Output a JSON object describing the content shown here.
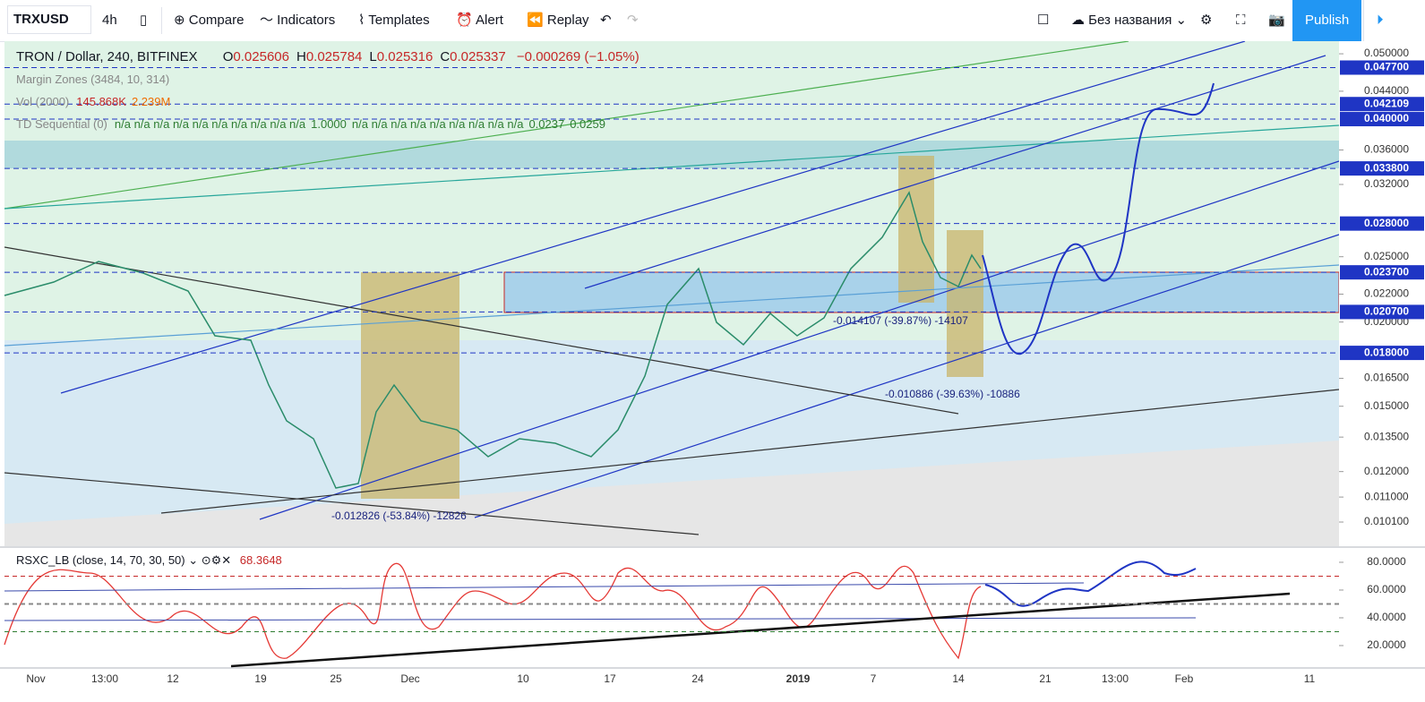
{
  "toolbar": {
    "symbol": "TRXUSD",
    "interval": "4h",
    "buttons": [
      "Compare",
      "Indicators",
      "Templates",
      "Alert",
      "Replay"
    ],
    "layout_name": "Без названия",
    "publish": "Publish"
  },
  "legend": {
    "title": "TRON / Dollar, 240, BITFINEX",
    "ohlc": [
      {
        "key": "O",
        "value": "0.025606"
      },
      {
        "key": "H",
        "value": "0.025784"
      },
      {
        "key": "L",
        "value": "0.025316"
      },
      {
        "key": "C",
        "value": "0.025337"
      }
    ],
    "change": "−0.000269 (−1.05%)",
    "indicators": [
      {
        "name": "Margin Zones (3484, 10, 314)",
        "values": []
      },
      {
        "name": "Vol (2000)",
        "values": [
          "145.868K",
          "2.239M"
        ]
      },
      {
        "name": "TD Sequential (0)",
        "values": [
          "n/a n/a n/a n/a n/a n/a n/a n/a n/a n/a",
          "1.0000",
          "n/a n/a n/a n/a n/a n/a n/a n/a n/a",
          "0.0237",
          "0.0259"
        ]
      }
    ]
  },
  "price_axis": {
    "scale": "log",
    "range": [
      0.0093,
      0.0522
    ],
    "ticks": [
      {
        "value": 0.05,
        "label": "0.050000"
      },
      {
        "value": 0.044,
        "label": "0.044000"
      },
      {
        "value": 0.036,
        "label": "0.036000"
      },
      {
        "value": 0.032,
        "label": "0.032000"
      },
      {
        "value": 0.025,
        "label": "0.025000"
      },
      {
        "value": 0.022,
        "label": "0.022000"
      },
      {
        "value": 0.02,
        "label": "0.020000"
      },
      {
        "value": 0.0165,
        "label": "0.016500"
      },
      {
        "value": 0.015,
        "label": "0.015000"
      },
      {
        "value": 0.0135,
        "label": "0.013500"
      },
      {
        "value": 0.012,
        "label": "0.012000"
      },
      {
        "value": 0.011,
        "label": "0.011000"
      },
      {
        "value": 0.0101,
        "label": "0.010100"
      }
    ],
    "levels": [
      {
        "value": 0.0477,
        "label": "0.047700"
      },
      {
        "value": 0.042109,
        "label": "0.042109"
      },
      {
        "value": 0.04,
        "label": "0.040000"
      },
      {
        "value": 0.0338,
        "label": "0.033800"
      },
      {
        "value": 0.028,
        "label": "0.028000"
      },
      {
        "value": 0.0237,
        "label": "0.023700"
      },
      {
        "value": 0.0207,
        "label": "0.020700"
      },
      {
        "value": 0.018,
        "label": "0.018000"
      }
    ]
  },
  "annotations": [
    "-0.014107 (-39.87%) -14107",
    "-0.010886 (-39.63%) -10886",
    "-0.012826 (-53.84%) -12826"
  ],
  "oscillator": {
    "name": "RSXC_LB (close, 14, 70, 30, 50)",
    "value": "68.3648",
    "range": [
      4.5,
      90.3
    ],
    "ticks": [
      {
        "value": 80,
        "label": "80.0000"
      },
      {
        "value": 60,
        "label": "60.0000"
      },
      {
        "value": 40,
        "label": "40.0000"
      },
      {
        "value": 20,
        "label": "20.0000"
      }
    ],
    "levels": [
      {
        "value": 70,
        "color": "#c62828"
      },
      {
        "value": 50,
        "color": "#888888"
      },
      {
        "value": 30,
        "color": "#2e7d32"
      }
    ]
  },
  "time_axis": [
    "Nov",
    "13:00",
    "12",
    "19",
    "25",
    "Dec",
    "10",
    "17",
    "24",
    "2019",
    "7",
    "14",
    "21",
    "13:00",
    "Feb",
    "11"
  ]
}
